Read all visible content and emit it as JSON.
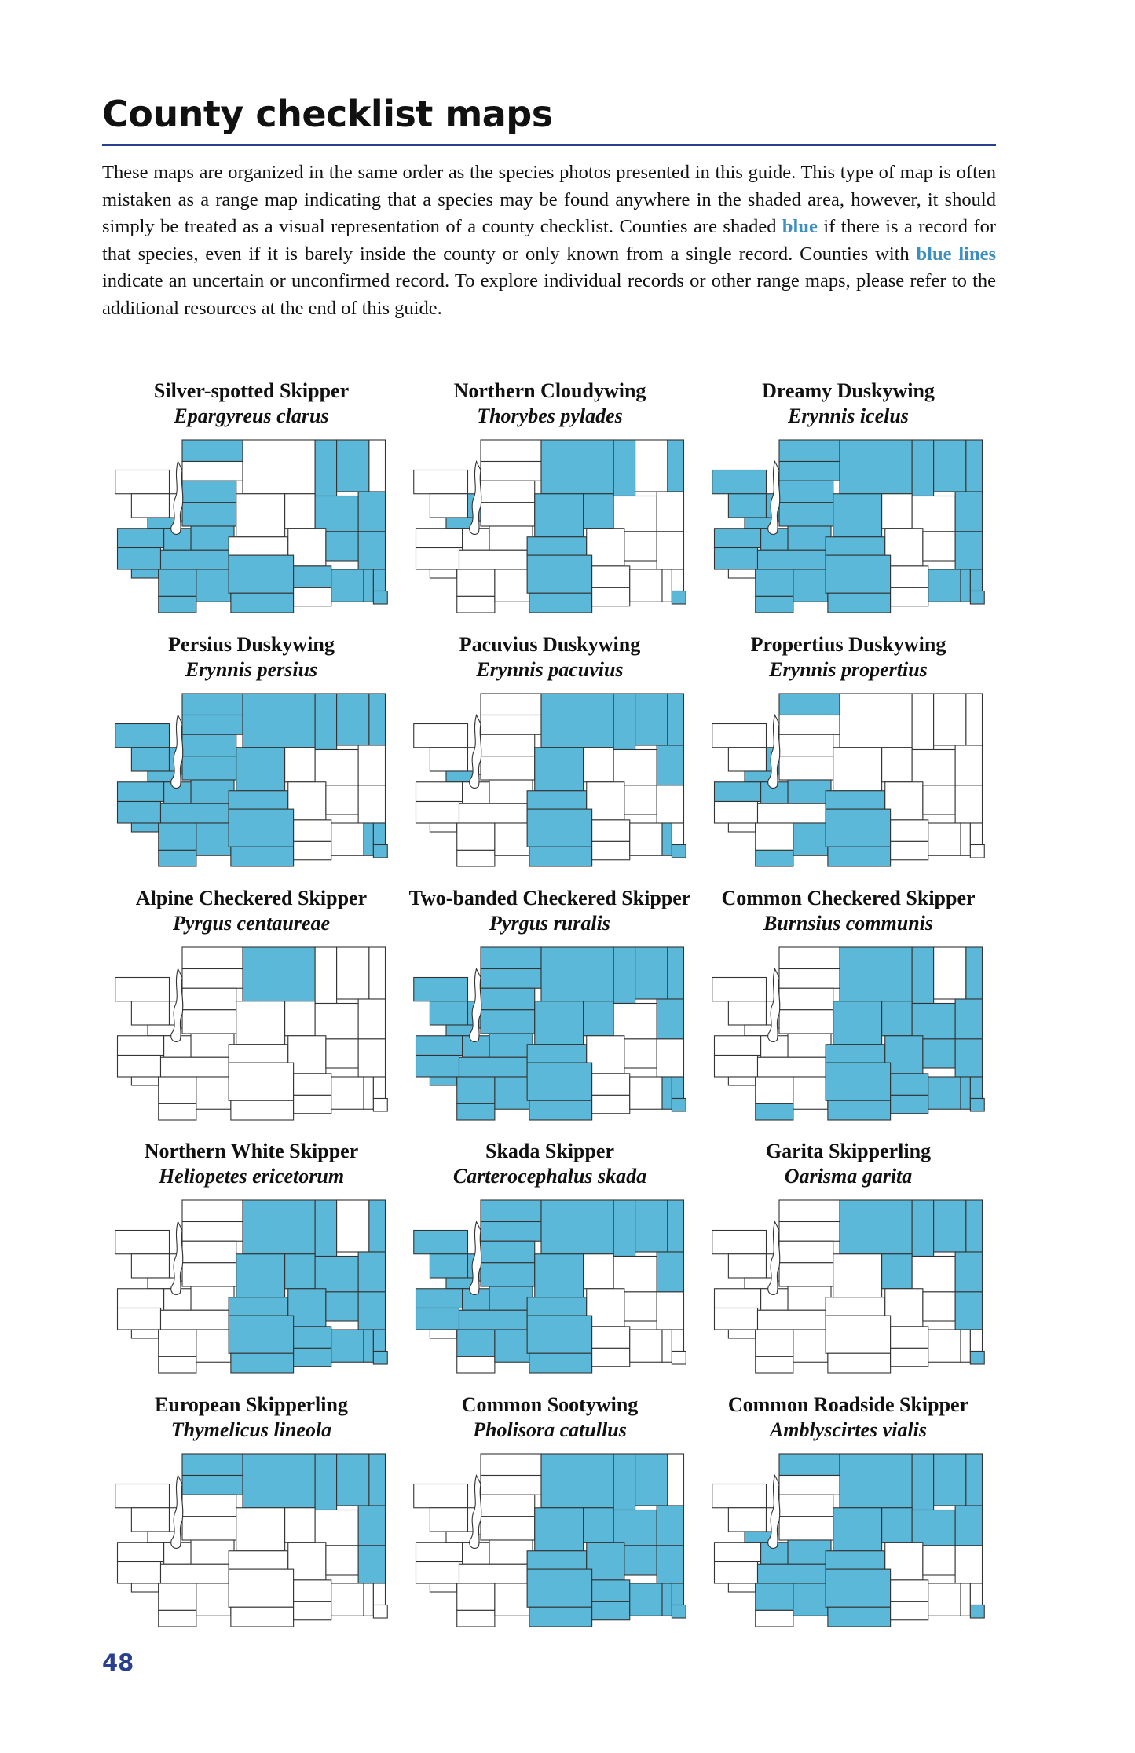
{
  "title": "County checklist maps",
  "intro": {
    "part1": "These maps are organized in the same order as the species photos presented in this guide. This type of map is often mistaken as a range map indicating that a species may be found anywhere in the shaded area, however, it should simply be treated as a visual representation of a county checklist. Counties are shaded ",
    "blue": "blue",
    "part2": " if there is a record for that species, even if it is barely inside the county or only known from a single record. Counties with ",
    "blue_lines": "blue lines",
    "part3": " indicate an uncertain or unconfirmed record. To explore individual records or other range maps, please refer to the additional resources at the end of this guide."
  },
  "colors": {
    "shaded": "#5bb8d8",
    "highlight_text": "#3d8fc0",
    "accent": "#2b3f8f",
    "outline": "#333333"
  },
  "species": [
    {
      "common": "Silver-spotted Skipper",
      "scientific": "Epargyreus clarus",
      "shaded": [
        2,
        4,
        5,
        7,
        8,
        9,
        10,
        11,
        12,
        13,
        14,
        15,
        16,
        18,
        19,
        23,
        24,
        27,
        28,
        29,
        30,
        31,
        33,
        34,
        35,
        36
      ]
    },
    {
      "common": "Northern Cloudywing",
      "scientific": "Thorybes pylades",
      "shaded": [
        6,
        7,
        17,
        18,
        20,
        21,
        22,
        25,
        29,
        30,
        36
      ]
    },
    {
      "common": "Dreamy Duskywing",
      "scientific": "Erynnis icelus",
      "shaded": [
        0,
        1,
        2,
        3,
        4,
        5,
        6,
        7,
        8,
        9,
        10,
        11,
        12,
        14,
        15,
        16,
        17,
        18,
        19,
        20,
        21,
        24,
        25,
        28,
        29,
        30,
        33,
        34,
        35,
        36
      ]
    },
    {
      "common": "Persius Duskywing",
      "scientific": "Erynnis persius",
      "shaded": [
        0,
        1,
        2,
        3,
        4,
        5,
        6,
        7,
        8,
        9,
        10,
        11,
        12,
        13,
        14,
        15,
        16,
        17,
        18,
        19,
        20,
        21,
        25,
        29,
        30,
        34,
        35,
        36
      ]
    },
    {
      "common": "Pacuvius Duskywing",
      "scientific": "Erynnis pacuvius",
      "shaded": [
        7,
        17,
        18,
        19,
        20,
        21,
        24,
        25,
        29,
        30,
        34,
        36
      ]
    },
    {
      "common": "Propertius Duskywing",
      "scientific": "Erynnis propertius",
      "shaded": [
        2,
        6,
        7,
        8,
        9,
        10,
        15,
        16,
        25,
        29,
        30
      ]
    },
    {
      "common": "Alpine Checkered Skipper",
      "scientific": "Pyrgus centaureae",
      "shaded": [
        17
      ]
    },
    {
      "common": "Two-banded Checkered Skipper",
      "scientific": "Pyrgus ruralis",
      "shaded": [
        0,
        1,
        2,
        3,
        4,
        5,
        6,
        7,
        8,
        9,
        10,
        11,
        12,
        13,
        14,
        15,
        16,
        17,
        18,
        19,
        20,
        21,
        22,
        24,
        25,
        29,
        30,
        34,
        35,
        36
      ]
    },
    {
      "common": "Common Checkered Skipper",
      "scientific": "Burnsius communis",
      "shaded": [
        15,
        17,
        18,
        20,
        21,
        22,
        23,
        24,
        25,
        26,
        27,
        28,
        29,
        30,
        31,
        32,
        33,
        34,
        35,
        36
      ]
    },
    {
      "common": "Northern White Skipper",
      "scientific": "Heliopetes ericetorum",
      "shaded": [
        17,
        18,
        20,
        21,
        22,
        23,
        24,
        25,
        26,
        27,
        28,
        29,
        30,
        31,
        32,
        33,
        34,
        35,
        36
      ]
    },
    {
      "common": "Skada Skipper",
      "scientific": "Carterocephalus skada",
      "shaded": [
        0,
        1,
        2,
        3,
        4,
        5,
        6,
        7,
        8,
        9,
        10,
        11,
        12,
        14,
        16,
        17,
        18,
        19,
        20,
        21,
        24,
        25,
        29,
        30
      ]
    },
    {
      "common": "Garita Skipperling",
      "scientific": "Oarisma garita",
      "shaded": [
        17,
        18,
        19,
        20,
        22,
        24,
        28,
        36
      ]
    },
    {
      "common": "European Skipperling",
      "scientific": "Thymelicus lineola",
      "shaded": [
        2,
        3,
        17,
        18,
        19,
        20,
        24,
        28
      ]
    },
    {
      "common": "Common Sootywing",
      "scientific": "Pholisora catullus",
      "shaded": [
        17,
        18,
        19,
        21,
        22,
        23,
        24,
        25,
        26,
        27,
        28,
        29,
        30,
        31,
        32,
        33,
        34,
        35,
        36
      ]
    },
    {
      "common": "Common Roadside Skipper",
      "scientific": "Amblyscirtes vialis",
      "shaded": [
        2,
        7,
        9,
        10,
        12,
        14,
        16,
        17,
        18,
        19,
        20,
        21,
        22,
        23,
        24,
        25,
        29,
        30,
        36
      ]
    }
  ],
  "page_number": "48"
}
